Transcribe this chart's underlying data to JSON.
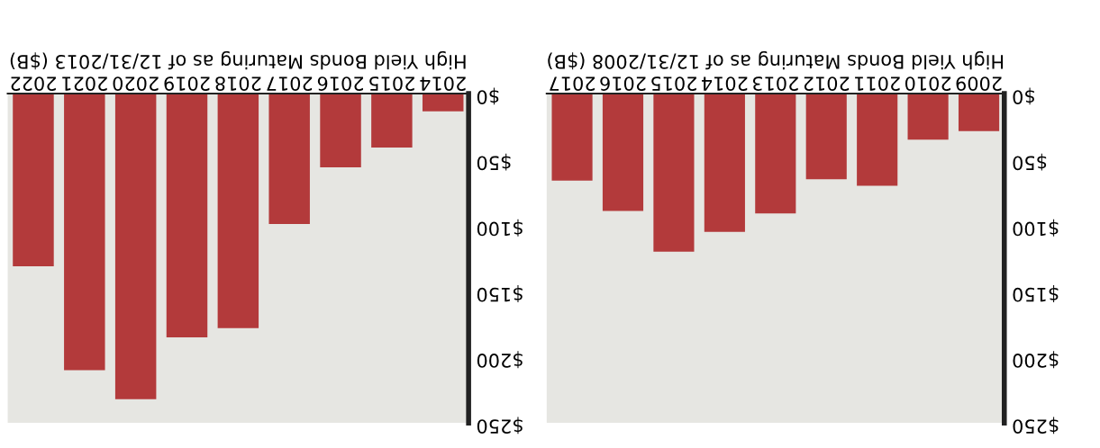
{
  "chart_data": [
    {
      "type": "bar",
      "xlabel": "High Yield Bonds Maturing as of 12/31/2013 ($B)",
      "categories": [
        "2022",
        "2021",
        "2020",
        "2019",
        "2018",
        "2017",
        "2016",
        "2015",
        "2014"
      ],
      "values": [
        131,
        210,
        232,
        185,
        178,
        99,
        56,
        41,
        13.5
      ],
      "color": "#b33a3b",
      "ylim": [
        250,
        0
      ],
      "yticks": [
        {
          "value": 0,
          "label": "$0"
        },
        {
          "value": 50,
          "label": "$50"
        },
        {
          "value": 100,
          "label": "$100"
        },
        {
          "value": 150,
          "label": "$150"
        },
        {
          "value": 200,
          "label": "$200"
        },
        {
          "value": 250,
          "label": "$250"
        }
      ],
      "grid": false
    },
    {
      "type": "bar",
      "xlabel": "High Yield Bonds Maturing as of 12/31/2008 ($B)",
      "categories": [
        "2017",
        "2016",
        "2015",
        "2014",
        "2013",
        "2012",
        "2011",
        "2010",
        "2009"
      ],
      "values": [
        66,
        89,
        120,
        105,
        91,
        65,
        70,
        35,
        28.5
      ],
      "color": "#b33a3b",
      "ylim": [
        250,
        0
      ],
      "yticks": [
        {
          "value": 0,
          "label": "$0"
        },
        {
          "value": 50,
          "label": "$50"
        },
        {
          "value": 100,
          "label": "$100"
        },
        {
          "value": 150,
          "label": "$150"
        },
        {
          "value": 200,
          "label": "$200"
        },
        {
          "value": 250,
          "label": "$250"
        }
      ],
      "grid": false
    }
  ]
}
